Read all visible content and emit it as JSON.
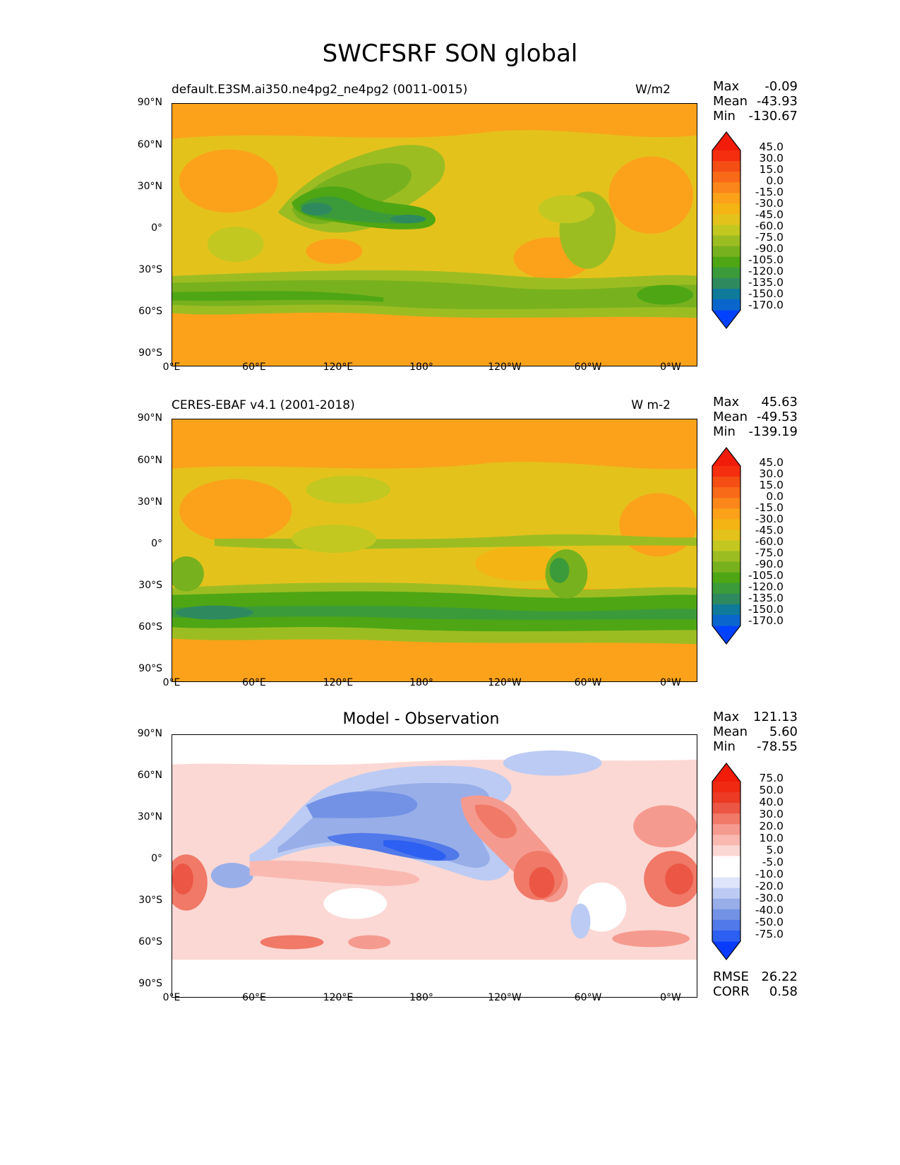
{
  "title": "SWCFSRF SON global",
  "lat_labels": [
    "90°N",
    "60°N",
    "30°N",
    "0°",
    "30°S",
    "60°S",
    "90°S"
  ],
  "lon_labels": [
    "0°E",
    "60°E",
    "120°E",
    "180°",
    "120°W",
    "60°W",
    "0°W"
  ],
  "colors": {
    "main_levels": [
      "#0042ff",
      "#0a66cc",
      "#107a9a",
      "#2e8a5e",
      "#3b9b3a",
      "#4ea614",
      "#78b11e",
      "#9cbd22",
      "#c2c820",
      "#e4c21c",
      "#f4b414",
      "#fba21a",
      "#fb861a",
      "#f96a18",
      "#f54e14",
      "#f42e0f",
      "#f21c0a"
    ],
    "diff_levels": [
      "#0a3cff",
      "#2c5ff2",
      "#5179ea",
      "#7392e6",
      "#98aee9",
      "#bccbf3",
      "#dfe5fa",
      "#ffffff",
      "#ffffff",
      "#fbd8d4",
      "#f9b9b1",
      "#f59a8f",
      "#f07968",
      "#ec5644",
      "#ec3a24",
      "#f02a12",
      "#f21c0a"
    ],
    "map_background_main": "#fba21a"
  },
  "panels": [
    {
      "kind": "test",
      "title_left": "default.E3SM.ai350.ne4pg2_ne4pg2 (0011-0015)",
      "units": "W/m2",
      "stats": {
        "max_label": "Max",
        "max": "-0.09",
        "mean_label": "Mean",
        "mean": "-43.93",
        "min_label": "Min",
        "min": "-130.67"
      },
      "colorbar_labels": [
        "45.0",
        "30.0",
        "15.0",
        "0.0",
        "-15.0",
        "-30.0",
        "-45.0",
        "-60.0",
        "-75.0",
        "-90.0",
        "-105.0",
        "-120.0",
        "-135.0",
        "-150.0",
        "-170.0"
      ]
    },
    {
      "kind": "reference",
      "title_left": "CERES-EBAF v4.1 (2001-2018)",
      "units": "W m-2",
      "stats": {
        "max_label": "Max",
        "max": "45.63",
        "mean_label": "Mean",
        "mean": "-49.53",
        "min_label": "Min",
        "min": "-139.19"
      },
      "colorbar_labels": [
        "45.0",
        "30.0",
        "15.0",
        "0.0",
        "-15.0",
        "-30.0",
        "-45.0",
        "-60.0",
        "-75.0",
        "-90.0",
        "-105.0",
        "-120.0",
        "-135.0",
        "-150.0",
        "-170.0"
      ]
    },
    {
      "kind": "difference",
      "title_center": "Model - Observation",
      "stats": {
        "max_label": "Max",
        "max": "121.13",
        "mean_label": "Mean",
        "mean": "5.60",
        "min_label": "Min",
        "min": "-78.55"
      },
      "colorbar_labels": [
        "75.0",
        "50.0",
        "40.0",
        "30.0",
        "20.0",
        "10.0",
        "5.0",
        "-5.0",
        "-10.0",
        "-20.0",
        "-30.0",
        "-40.0",
        "-50.0",
        "-75.0"
      ],
      "metrics": {
        "rmse_label": "RMSE",
        "rmse": "26.22",
        "corr_label": "CORR",
        "corr": "0.58"
      }
    }
  ]
}
